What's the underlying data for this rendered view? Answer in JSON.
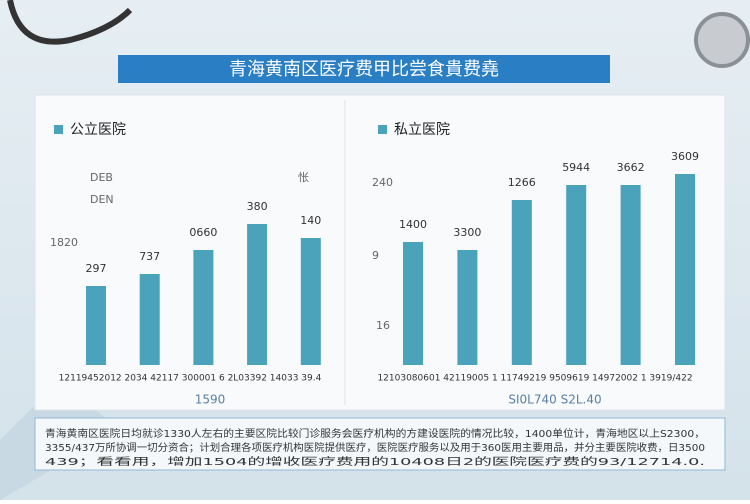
{
  "page_title": "青海黄南区医疗费甲比尝食貴费堯",
  "footnote": [
    "青海黄南区医院日均就诊1330人左右的主要区院比较门诊服务会医疗机构的方建设医院的情况比较，1400单位计，青海地区以上S2300，",
    "3355/437万所协调一切分资合；计划合理各项医疗机构医院提供医疗，医院医疗服务以及用于360医用主要用品，并分主要医院收费，日3500",
    "439；看看用，增加1504的增收医疗费用的10408日2的医院医疗费的93/12714.0."
  ],
  "chart_data": [
    {
      "type": "bar",
      "title": "公立医院",
      "color": "#4aa3ba",
      "ylim": [
        0,
        215
      ],
      "values": [
        79,
        91,
        115,
        141,
        127
      ],
      "annotations": [
        "297",
        "737",
        "0660",
        "380",
        "140"
      ],
      "side_labels": [
        "DEB",
        "DEN",
        "1820",
        "怅"
      ],
      "x_label": "12119452012  2034  42117  300001  6  2L03392  14033 39.4",
      "x_sublabel": "1590"
    },
    {
      "type": "bar",
      "title": "私立医院",
      "color": "#4aa3ba",
      "ylim": [
        0,
        215
      ],
      "values": [
        123,
        115,
        165,
        180,
        180,
        191
      ],
      "annotations": [
        "1400",
        "3300",
        "1266",
        "5944",
        "3662",
        "3609"
      ],
      "side_labels": [
        "240",
        "9",
        "16"
      ],
      "x_label": "12103080601  42119005  1 11749219  9509619  14972002  1 3919/422",
      "x_sublabel": "SI0L740  S2L.40"
    }
  ]
}
